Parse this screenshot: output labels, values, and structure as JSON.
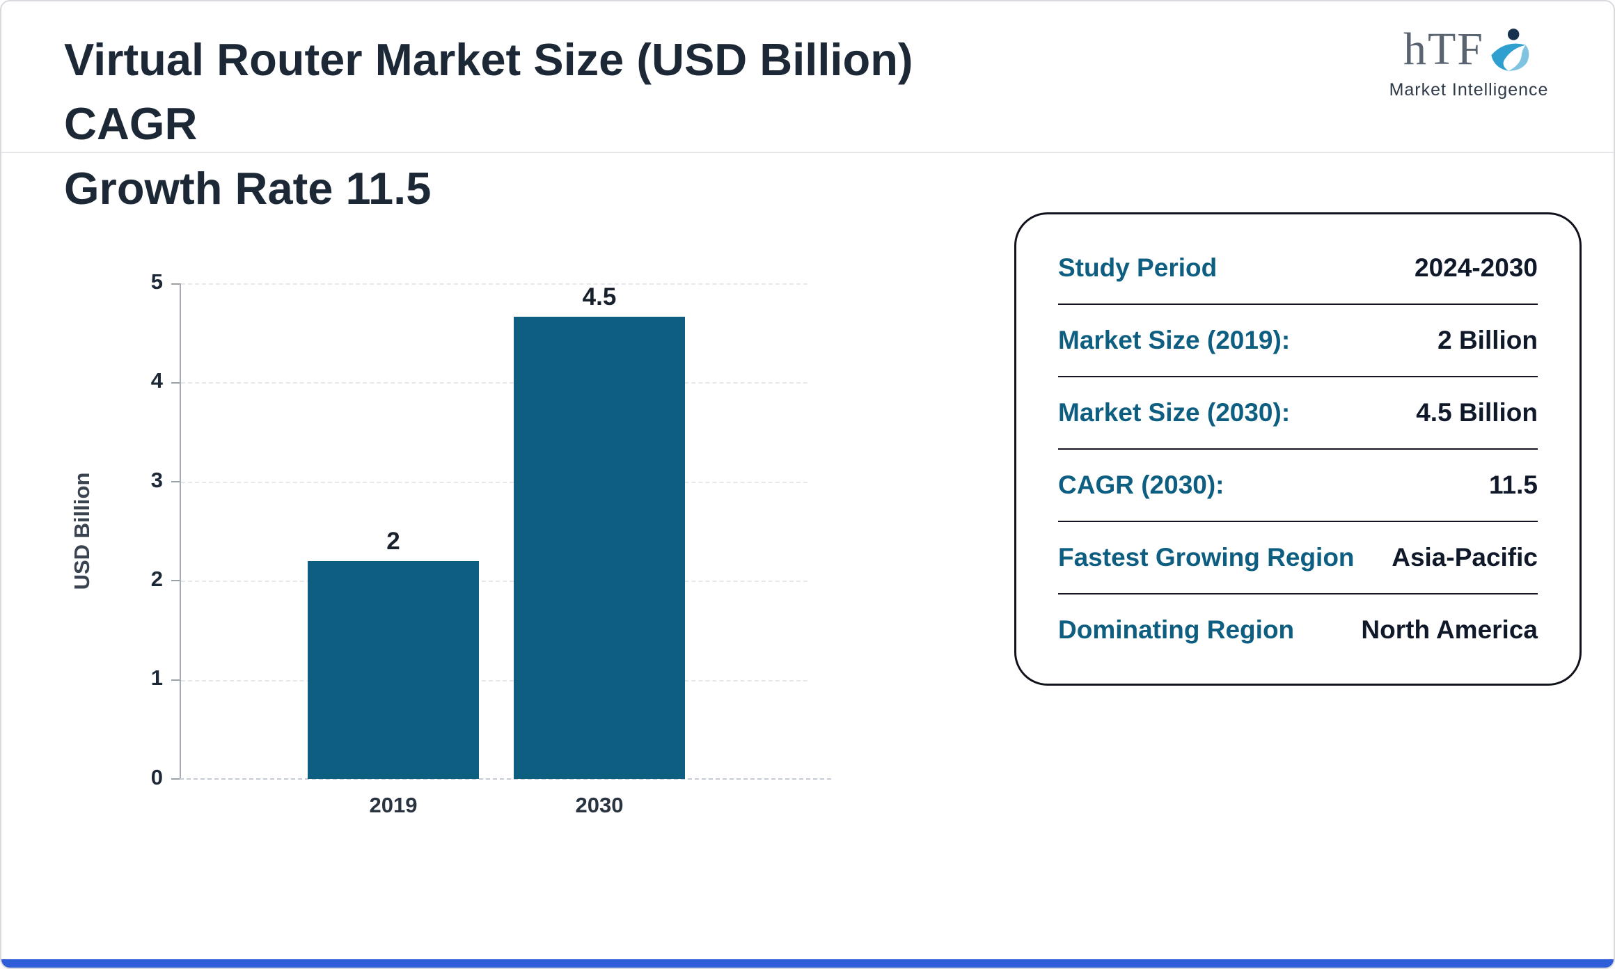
{
  "header": {
    "title_line1": "Virtual Router Market Size (USD Billion) CAGR",
    "title_line2": "Growth Rate 11.5",
    "logo": {
      "text": "hTF",
      "subtext": "Market Intelligence"
    }
  },
  "chart_data": {
    "type": "bar",
    "title": "Virtual Router Market Size (USD Billion) CAGR Growth Rate 11.5",
    "categories": [
      "2019",
      "2030"
    ],
    "values": [
      2,
      4.5
    ],
    "bar_labels": [
      "2",
      "4.5"
    ],
    "rendered_heights": [
      2.2,
      5
    ],
    "xlabel": "",
    "ylabel": "USD Billion",
    "ylim": [
      0,
      5
    ],
    "yticks": [
      0,
      1,
      2,
      3,
      4,
      5
    ],
    "bar_color": "#0d5e80",
    "grid": "dashed-horizontal",
    "legend": "none"
  },
  "summary_card": {
    "rows": [
      {
        "label": "Study Period",
        "value": "2024-2030"
      },
      {
        "label": "Market Size (2019):",
        "value": "2 Billion"
      },
      {
        "label": "Market Size (2030):",
        "value": "4.5 Billion"
      },
      {
        "label": "CAGR (2030):",
        "value": "11.5"
      },
      {
        "label": "Fastest Growing Region",
        "value": "Asia-Pacific"
      },
      {
        "label": "Dominating Region",
        "value": "North America"
      }
    ],
    "label_color": "#0d5e80",
    "value_color": "#10192a"
  },
  "footer": {
    "accent_color": "#2e5fd9"
  }
}
